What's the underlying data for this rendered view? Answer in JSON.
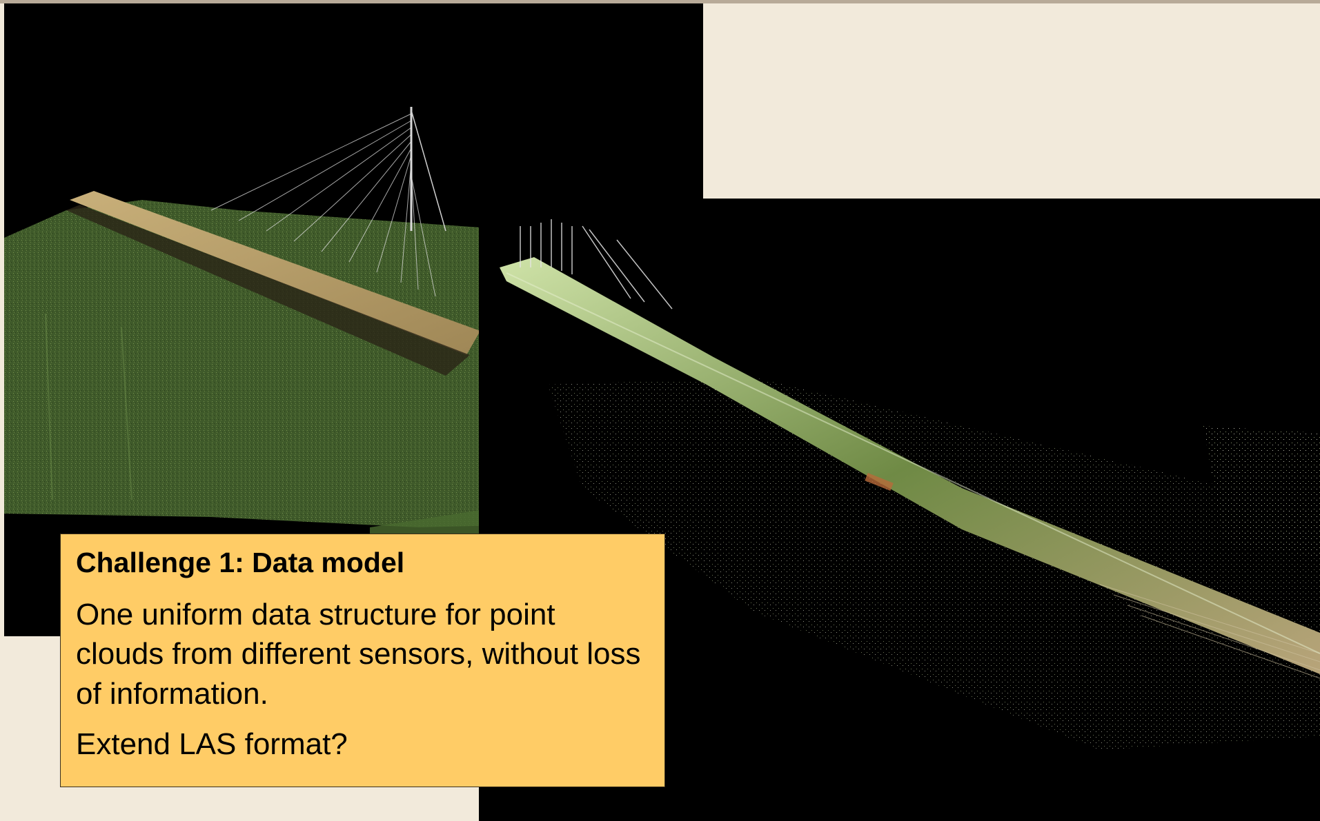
{
  "callout": {
    "title": "Challenge 1: Data model",
    "body": "One uniform data structure for point clouds from different sensors, without loss of information.",
    "question": "Extend LAS format?"
  },
  "images": {
    "left": {
      "icon": "point-cloud-bridge-image"
    },
    "right": {
      "icon": "point-cloud-bridge-image"
    }
  },
  "colors": {
    "background": "#f2eadb",
    "callout_fill": "#ffcc66",
    "image_background": "#000000",
    "terrain_green": "#4f6b35",
    "deck_tan": "#b59a62"
  }
}
